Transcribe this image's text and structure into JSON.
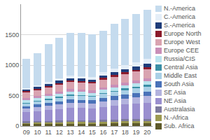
{
  "chart_data": {
    "type": "bar",
    "stacked": true,
    "grid": true,
    "legend": "right",
    "categories": [
      "09",
      "10",
      "11",
      "12",
      "13",
      "14",
      "15",
      "16",
      "17",
      "18",
      "19",
      "20"
    ],
    "ylim": [
      0,
      2000
    ],
    "yticks": [
      0,
      500,
      1000,
      1500
    ],
    "series": [
      {
        "name": "N.-America",
        "color": "#c5dbee",
        "values": [
          480,
          530,
          630,
          670,
          700,
          710,
          710,
          680,
          740,
          760,
          790,
          810
        ]
      },
      {
        "name": "C.-America",
        "color": "#e4eef8",
        "values": [
          20,
          24,
          29,
          38,
          43,
          44,
          40,
          54,
          58,
          66,
          75,
          82
        ]
      },
      {
        "name": "S.-America",
        "color": "#1f3d7a",
        "values": [
          30,
          33,
          36,
          40,
          42,
          40,
          38,
          42,
          46,
          50,
          52,
          54
        ]
      },
      {
        "name": "Europe North",
        "color": "#8b1a2b",
        "values": [
          20,
          21,
          22,
          24,
          25,
          25,
          25,
          27,
          28,
          30,
          31,
          32
        ]
      },
      {
        "name": "Europe West",
        "color": "#d9a3b0",
        "values": [
          95,
          100,
          105,
          110,
          115,
          115,
          115,
          125,
          130,
          136,
          140,
          146
        ]
      },
      {
        "name": "Europe CEE",
        "color": "#c98fb8",
        "values": [
          30,
          32,
          34,
          36,
          38,
          38,
          38,
          42,
          44,
          46,
          48,
          50
        ]
      },
      {
        "name": "Russia/CIS",
        "color": "#b9e3ee",
        "values": [
          40,
          42,
          45,
          48,
          50,
          48,
          46,
          50,
          54,
          56,
          58,
          60
        ]
      },
      {
        "name": "Central Asia",
        "color": "#3a8fa6",
        "values": [
          15,
          16,
          18,
          20,
          22,
          20,
          18,
          20,
          22,
          24,
          26,
          28
        ]
      },
      {
        "name": "Middle East",
        "color": "#a9cfe6",
        "values": [
          45,
          48,
          52,
          56,
          60,
          60,
          58,
          64,
          68,
          72,
          76,
          80
        ]
      },
      {
        "name": "South Asia",
        "color": "#4a72b8",
        "values": [
          40,
          44,
          48,
          52,
          56,
          56,
          56,
          62,
          66,
          70,
          74,
          78
        ]
      },
      {
        "name": "SE Asia",
        "color": "#b3b3de",
        "values": [
          60,
          65,
          70,
          75,
          80,
          80,
          80,
          85,
          90,
          95,
          100,
          105
        ]
      },
      {
        "name": "NE Asia",
        "color": "#9a8fcf",
        "values": [
          150,
          165,
          175,
          190,
          205,
          200,
          195,
          215,
          230,
          245,
          255,
          265
        ]
      },
      {
        "name": "Australasia",
        "color": "#7d7a9e",
        "values": [
          25,
          26,
          28,
          30,
          30,
          30,
          28,
          30,
          32,
          34,
          35,
          36
        ]
      },
      {
        "name": "N.-Africa",
        "color": "#9c9a52",
        "values": [
          20,
          22,
          24,
          25,
          26,
          26,
          25,
          28,
          30,
          32,
          34,
          36
        ]
      },
      {
        "name": "Sub. Africa",
        "color": "#5e5a2a",
        "values": [
          30,
          32,
          34,
          36,
          38,
          38,
          38,
          40,
          42,
          44,
          46,
          48
        ]
      }
    ]
  }
}
